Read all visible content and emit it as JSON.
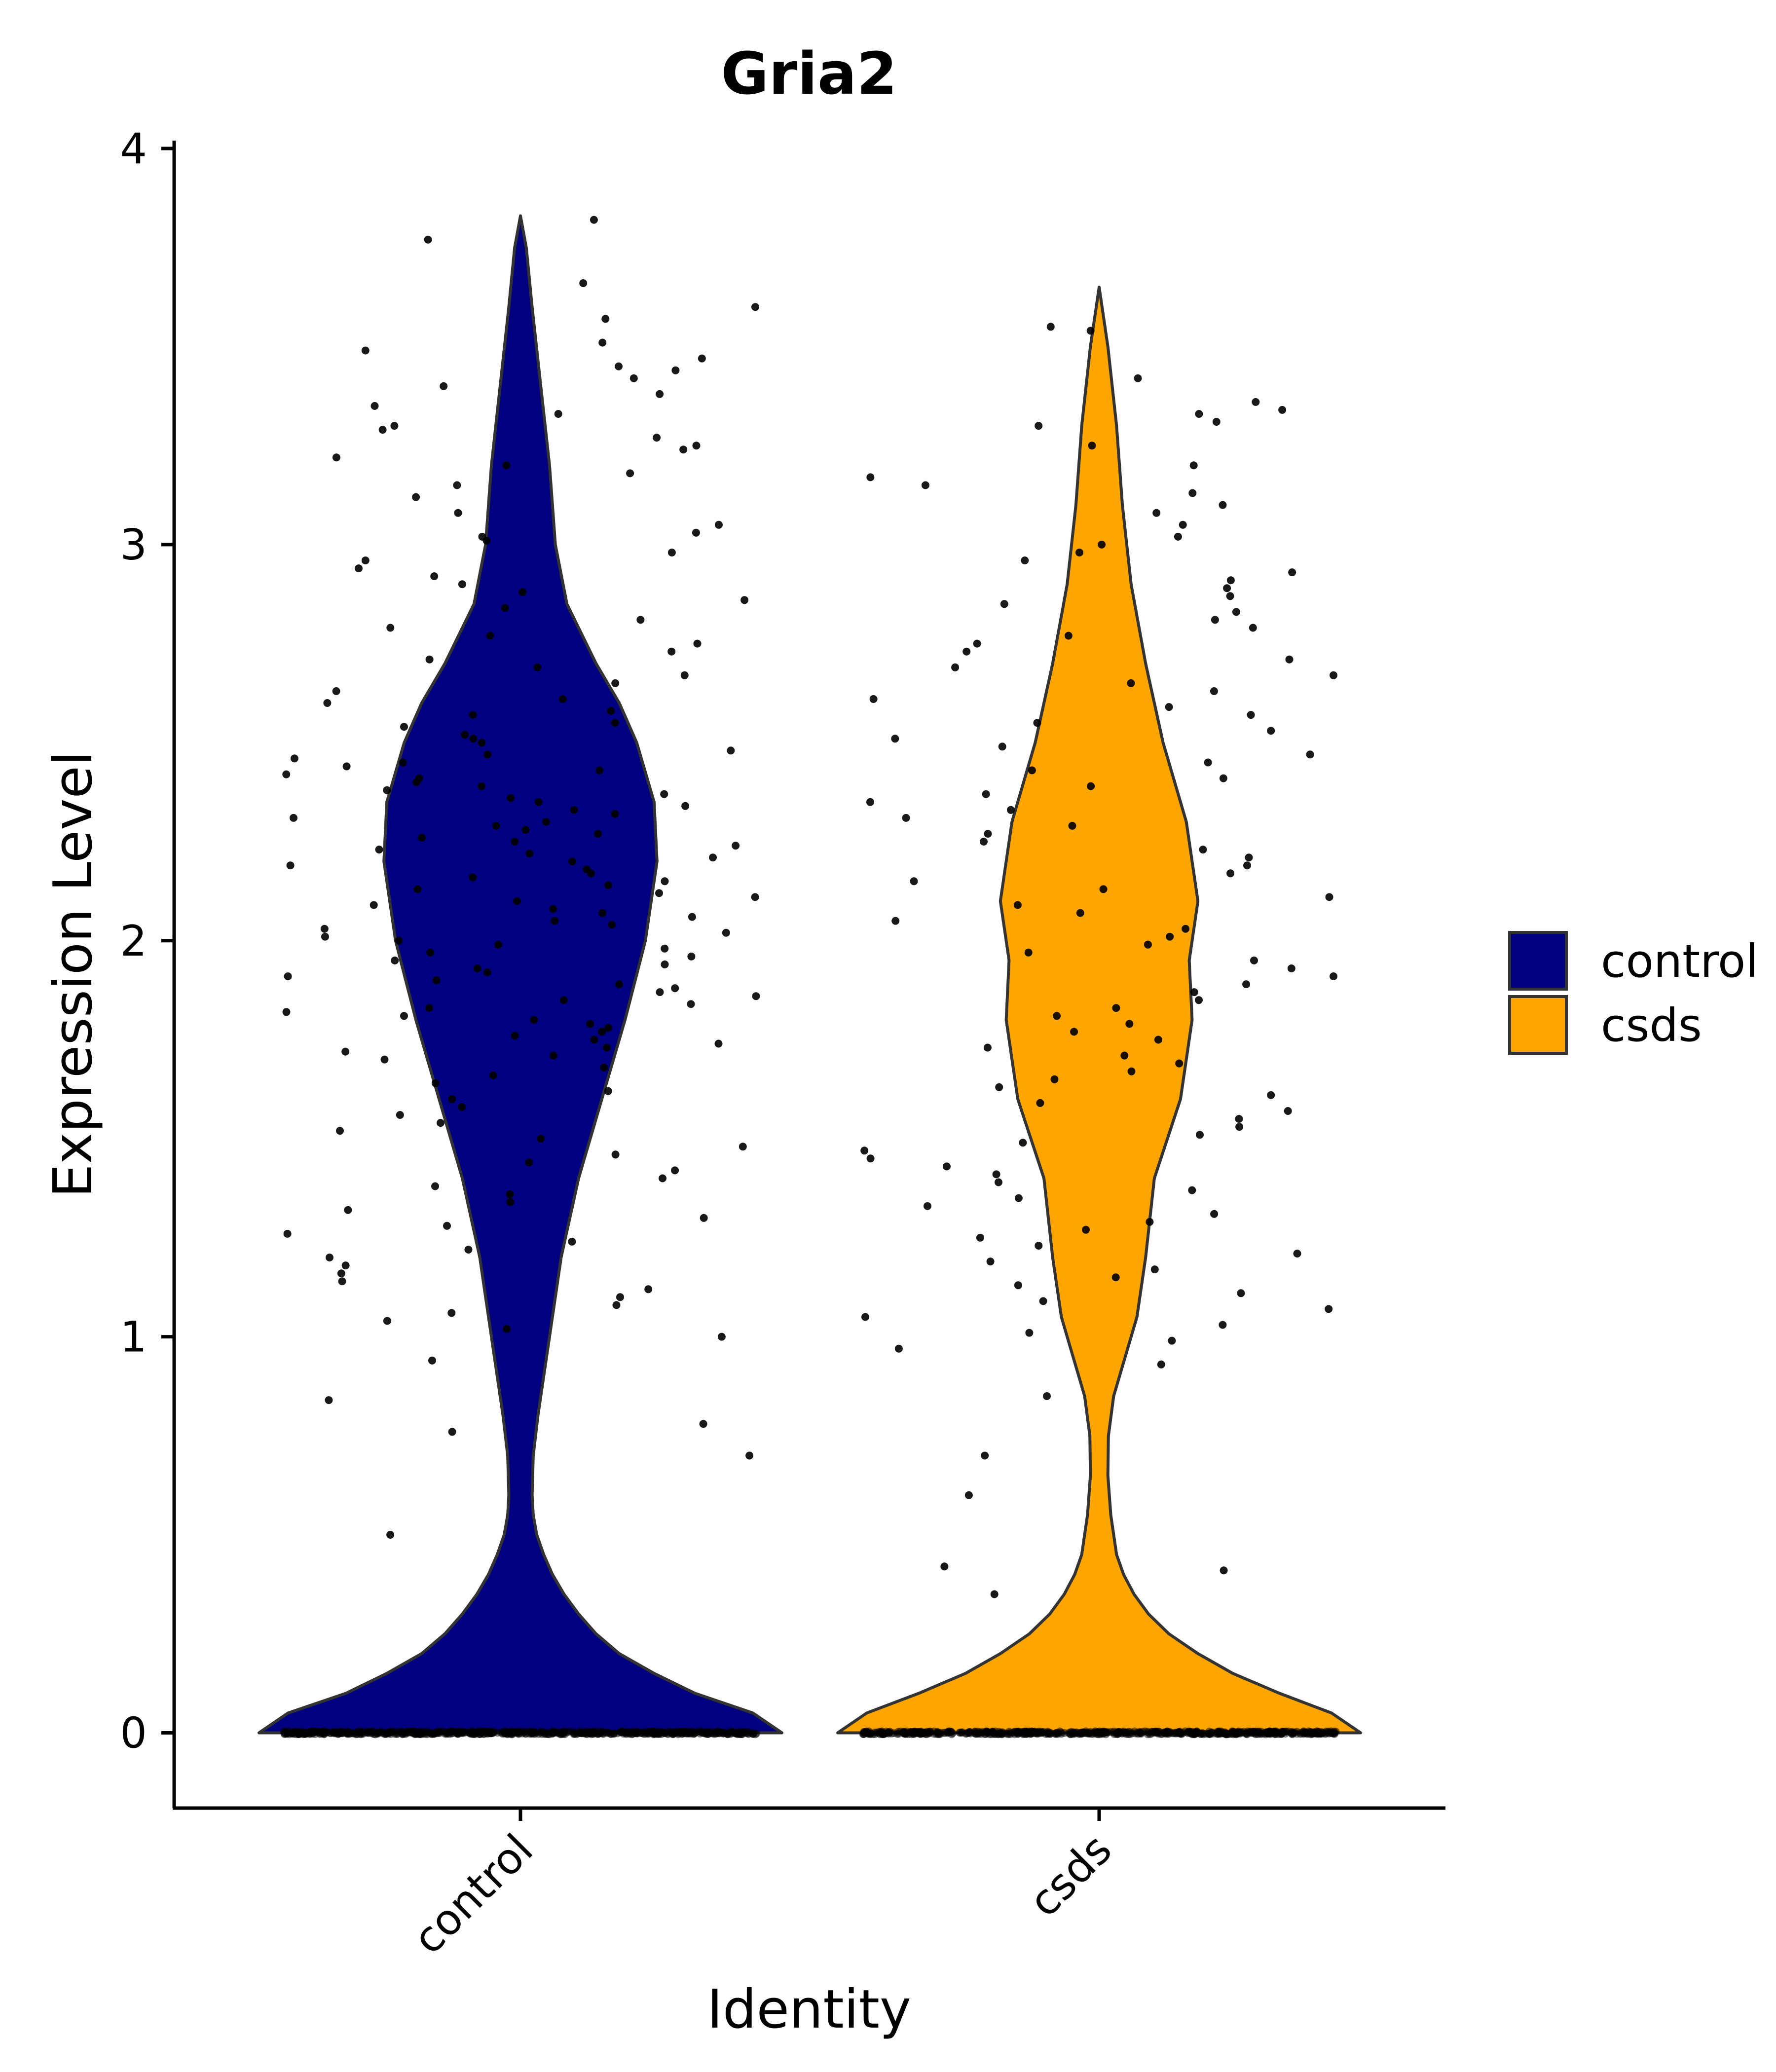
{
  "chart_data": {
    "type": "violin",
    "title": "Gria2",
    "xlabel": "Identity",
    "ylabel": "Expression Level",
    "ylim": [
      -0.19,
      4.02
    ],
    "yticks": [
      0,
      1,
      2,
      3,
      4
    ],
    "categories": [
      "control",
      "csds"
    ],
    "colors": {
      "control": "#000080",
      "csds": "#FFA500",
      "outline": "#333333",
      "points": "#000000"
    },
    "legend": {
      "position": "right",
      "entries": [
        "control",
        "csds"
      ]
    },
    "grid": false,
    "violins": [
      {
        "group": "control",
        "max": 3.83,
        "profile": [
          [
            0.0,
            0.45
          ],
          [
            0.05,
            0.4
          ],
          [
            0.1,
            0.3
          ],
          [
            0.15,
            0.23
          ],
          [
            0.2,
            0.17
          ],
          [
            0.25,
            0.13
          ],
          [
            0.3,
            0.1
          ],
          [
            0.35,
            0.075
          ],
          [
            0.4,
            0.055
          ],
          [
            0.45,
            0.04
          ],
          [
            0.5,
            0.028
          ],
          [
            0.55,
            0.022
          ],
          [
            0.6,
            0.02
          ],
          [
            0.7,
            0.022
          ],
          [
            0.8,
            0.03
          ],
          [
            0.9,
            0.04
          ],
          [
            1.0,
            0.05
          ],
          [
            1.1,
            0.06
          ],
          [
            1.2,
            0.07
          ],
          [
            1.4,
            0.1
          ],
          [
            1.6,
            0.14
          ],
          [
            1.8,
            0.18
          ],
          [
            2.0,
            0.215
          ],
          [
            2.2,
            0.235
          ],
          [
            2.35,
            0.23
          ],
          [
            2.5,
            0.2
          ],
          [
            2.6,
            0.17
          ],
          [
            2.7,
            0.13
          ],
          [
            2.85,
            0.08
          ],
          [
            3.0,
            0.06
          ],
          [
            3.2,
            0.05
          ],
          [
            3.4,
            0.035
          ],
          [
            3.6,
            0.02
          ],
          [
            3.75,
            0.01
          ],
          [
            3.83,
            0.0
          ]
        ]
      },
      {
        "group": "csds",
        "max": 3.65,
        "profile": [
          [
            0.0,
            0.45
          ],
          [
            0.05,
            0.4
          ],
          [
            0.1,
            0.31
          ],
          [
            0.15,
            0.23
          ],
          [
            0.2,
            0.17
          ],
          [
            0.25,
            0.12
          ],
          [
            0.3,
            0.085
          ],
          [
            0.35,
            0.06
          ],
          [
            0.4,
            0.042
          ],
          [
            0.45,
            0.03
          ],
          [
            0.55,
            0.02
          ],
          [
            0.65,
            0.015
          ],
          [
            0.75,
            0.016
          ],
          [
            0.85,
            0.025
          ],
          [
            0.95,
            0.045
          ],
          [
            1.05,
            0.065
          ],
          [
            1.2,
            0.08
          ],
          [
            1.4,
            0.095
          ],
          [
            1.6,
            0.14
          ],
          [
            1.8,
            0.16
          ],
          [
            1.95,
            0.155
          ],
          [
            2.1,
            0.17
          ],
          [
            2.3,
            0.15
          ],
          [
            2.5,
            0.11
          ],
          [
            2.7,
            0.08
          ],
          [
            2.9,
            0.055
          ],
          [
            3.1,
            0.04
          ],
          [
            3.3,
            0.03
          ],
          [
            3.5,
            0.015
          ],
          [
            3.65,
            0.0
          ]
        ]
      }
    ],
    "points": {
      "note": "jittered individual cells; many cells at expression 0",
      "groups": [
        {
          "group": "control",
          "n_zero": 600,
          "values": [
            3.82,
            3.77,
            3.66,
            3.6,
            3.57,
            3.51,
            3.49,
            3.47,
            3.45,
            3.44,
            3.42,
            3.4,
            3.38,
            3.35,
            3.33,
            3.3,
            3.29,
            3.27,
            3.25,
            3.24,
            3.22,
            3.2,
            3.18,
            3.15,
            3.12,
            3.08,
            3.05,
            3.03,
            3.02,
            3.01,
            2.98,
            2.96,
            2.94,
            2.92,
            2.9,
            2.88,
            2.86,
            2.84,
            2.81,
            2.79,
            2.77,
            2.75,
            2.73,
            2.71,
            2.69,
            2.67,
            2.65,
            2.63,
            2.61,
            2.6,
            2.58,
            2.57,
            2.55,
            2.54,
            2.52,
            2.51,
            2.5,
            2.48,
            2.47,
            2.46,
            2.45,
            2.44,
            2.43,
            2.42,
            2.41,
            2.4,
            2.39,
            2.38,
            2.37,
            2.36,
            2.35,
            2.34,
            2.33,
            2.32,
            2.31,
            2.3,
            2.29,
            2.28,
            2.27,
            2.26,
            2.25,
            2.24,
            2.23,
            2.22,
            2.21,
            2.2,
            2.19,
            2.18,
            2.17,
            2.16,
            2.15,
            2.14,
            2.13,
            2.12,
            2.11,
            2.1,
            2.09,
            2.08,
            2.07,
            2.06,
            2.05,
            2.04,
            2.03,
            2.02,
            2.01,
            2.0,
            1.99,
            1.98,
            1.97,
            1.96,
            1.95,
            1.94,
            1.93,
            1.92,
            1.91,
            1.9,
            1.89,
            1.88,
            1.87,
            1.86,
            1.85,
            1.84,
            1.83,
            1.82,
            1.81,
            1.8,
            1.79,
            1.78,
            1.77,
            1.76,
            1.75,
            1.74,
            1.73,
            1.72,
            1.71,
            1.7,
            1.68,
            1.66,
            1.64,
            1.62,
            1.6,
            1.58,
            1.56,
            1.54,
            1.52,
            1.5,
            1.48,
            1.46,
            1.44,
            1.42,
            1.4,
            1.38,
            1.36,
            1.34,
            1.32,
            1.3,
            1.28,
            1.26,
            1.24,
            1.22,
            1.2,
            1.18,
            1.16,
            1.14,
            1.12,
            1.1,
            1.08,
            1.06,
            1.04,
            1.02,
            1.0,
            0.94,
            0.84,
            0.78,
            0.76,
            0.7,
            0.5
          ]
        },
        {
          "group": "csds",
          "n_zero": 600,
          "values": [
            3.55,
            3.54,
            3.42,
            3.36,
            3.34,
            3.33,
            3.31,
            3.3,
            3.25,
            3.2,
            3.17,
            3.15,
            3.13,
            3.1,
            3.08,
            3.05,
            3.02,
            3.0,
            2.98,
            2.96,
            2.93,
            2.91,
            2.89,
            2.87,
            2.85,
            2.83,
            2.81,
            2.79,
            2.77,
            2.75,
            2.73,
            2.71,
            2.69,
            2.67,
            2.65,
            2.63,
            2.61,
            2.59,
            2.57,
            2.55,
            2.53,
            2.51,
            2.49,
            2.47,
            2.45,
            2.43,
            2.41,
            2.39,
            2.37,
            2.35,
            2.33,
            2.31,
            2.29,
            2.27,
            2.25,
            2.23,
            2.21,
            2.19,
            2.17,
            2.15,
            2.13,
            2.11,
            2.09,
            2.07,
            2.05,
            2.03,
            2.01,
            1.99,
            1.97,
            1.95,
            1.93,
            1.91,
            1.89,
            1.87,
            1.85,
            1.83,
            1.81,
            1.79,
            1.77,
            1.75,
            1.73,
            1.71,
            1.69,
            1.67,
            1.65,
            1.63,
            1.61,
            1.59,
            1.57,
            1.55,
            1.53,
            1.51,
            1.49,
            1.47,
            1.45,
            1.43,
            1.41,
            1.39,
            1.37,
            1.35,
            1.33,
            1.31,
            1.29,
            1.27,
            1.25,
            1.23,
            1.21,
            1.19,
            1.17,
            1.15,
            1.13,
            1.11,
            1.09,
            1.07,
            1.05,
            1.03,
            1.01,
            0.99,
            0.97,
            0.93,
            0.85,
            0.7,
            0.6,
            0.42,
            0.41,
            0.35
          ]
        }
      ]
    }
  }
}
